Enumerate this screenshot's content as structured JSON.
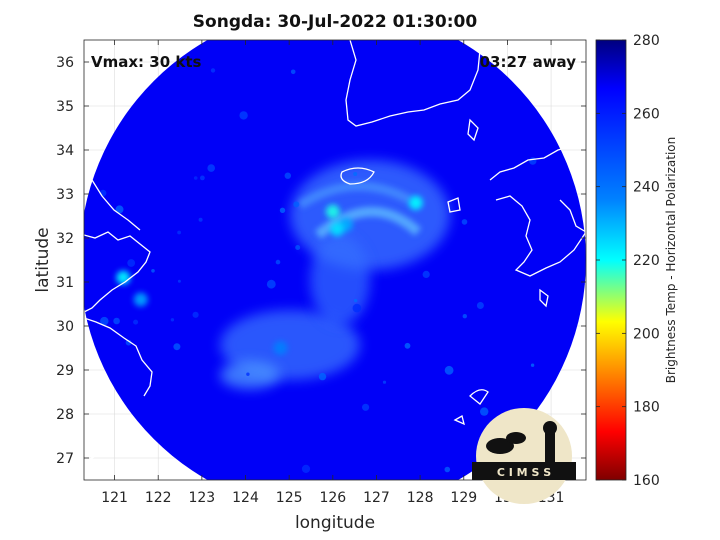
{
  "chart_data": {
    "type": "heatmap",
    "title": "Songda: 30-Jul-2022 01:30:00",
    "xlabel": "longitude",
    "ylabel": "latitude",
    "xlim": [
      120.3,
      131.8
    ],
    "ylim": [
      26.5,
      36.5
    ],
    "xticks": [
      121,
      122,
      123,
      124,
      125,
      126,
      127,
      128,
      129,
      130,
      131
    ],
    "yticks": [
      27,
      28,
      29,
      30,
      31,
      32,
      33,
      34,
      35,
      36
    ],
    "grid": true,
    "annotations": {
      "vmax": "Vmax: 30 kts",
      "away": "03:27 away"
    },
    "colorbar": {
      "label": "Brightness Temp - Horizontal Polarization",
      "range": [
        160,
        280
      ],
      "ticks": [
        160,
        180,
        200,
        220,
        240,
        260,
        280
      ],
      "colormap": "jet"
    },
    "swath": {
      "shape": "circle",
      "center_lon": 126.0,
      "center_lat": 31.5,
      "radius_deg": 5.8,
      "background_value": 266
    },
    "features": [
      {
        "name": "storm-center-band",
        "lon": 126.3,
        "lat": 32.3,
        "value": 245
      },
      {
        "name": "north-arc-west",
        "lon": 126.0,
        "lat": 32.6,
        "value": 232
      },
      {
        "name": "north-arc-east",
        "lon": 127.9,
        "lat": 32.8,
        "value": 235
      },
      {
        "name": "arc-south",
        "lon": 126.1,
        "lat": 32.2,
        "value": 238
      },
      {
        "name": "southwest-band",
        "lon": 124.8,
        "lat": 29.5,
        "value": 250
      },
      {
        "name": "coastal-hotspot",
        "lon": 121.2,
        "lat": 31.1,
        "value": 235
      },
      {
        "name": "coastal-warm-spot",
        "lon": 121.6,
        "lat": 30.6,
        "value": 245
      }
    ],
    "logo_text": "C I M S S"
  },
  "colors": {
    "low": "#7f0000",
    "mid": "#00ffff",
    "high": "#00007f",
    "coast": "#ffffff"
  }
}
